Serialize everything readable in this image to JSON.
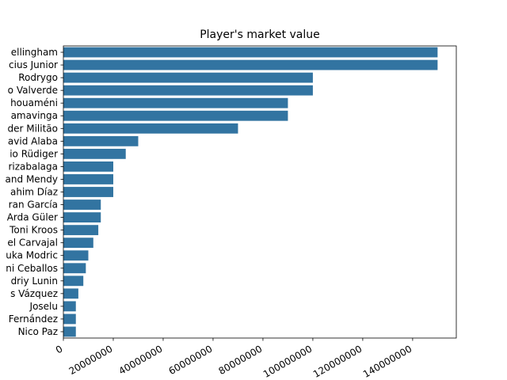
{
  "chart_data": {
    "type": "bar",
    "orientation": "horizontal",
    "title": "Player's market value",
    "xlabel": "",
    "ylabel": "",
    "xlim": [
      0,
      157500000
    ],
    "x_ticks": [
      0,
      20000000,
      40000000,
      60000000,
      80000000,
      100000000,
      120000000,
      140000000
    ],
    "x_tick_labels": [
      "0",
      "20000000",
      "40000000",
      "60000000",
      "80000000",
      "100000000",
      "120000000",
      "140000000"
    ],
    "categories": [
      "Jude Bellingham",
      "Vinicius Junior",
      "Rodrygo",
      "Federico Valverde",
      "Aurélien Tchouaméni",
      "Eduardo Camavinga",
      "Éder Militão",
      "David Alaba",
      "Antonio Rüdiger",
      "Kepa Arrizabalaga",
      "Ferland Mendy",
      "Brahim Díaz",
      "Fran García",
      "Arda Güler",
      "Toni Kroos",
      "Daniel Carvajal",
      "Luka Modric",
      "Dani Ceballos",
      "Andriy Lunin",
      "Lucas Vázquez",
      "Joselu",
      "Nacho Fernández",
      "Nico Paz"
    ],
    "visible_labels": [
      "ellingham",
      "cius Junior",
      "Rodrygo",
      "o Valverde",
      "houaméni",
      "amavinga",
      "der Militão",
      "avid Alaba",
      "io Rüdiger",
      "rizabalaga",
      "and Mendy",
      "ahim Díaz",
      "ran García",
      "Arda Güler",
      "Toni Kroos",
      "el Carvajal",
      "uka Modric",
      "ni Ceballos",
      "driy Lunin",
      "s Vázquez",
      "Joselu",
      "Fernández",
      "Nico Paz"
    ],
    "values": [
      150000000,
      150000000,
      100000000,
      100000000,
      90000000,
      90000000,
      70000000,
      30000000,
      25000000,
      20000000,
      20000000,
      20000000,
      15000000,
      15000000,
      14000000,
      12000000,
      10000000,
      9000000,
      8000000,
      6000000,
      5000000,
      5000000,
      5000000
    ],
    "bar_color": "#3274a1",
    "grid": false,
    "legend": "none",
    "x_tick_rotation": 30
  }
}
